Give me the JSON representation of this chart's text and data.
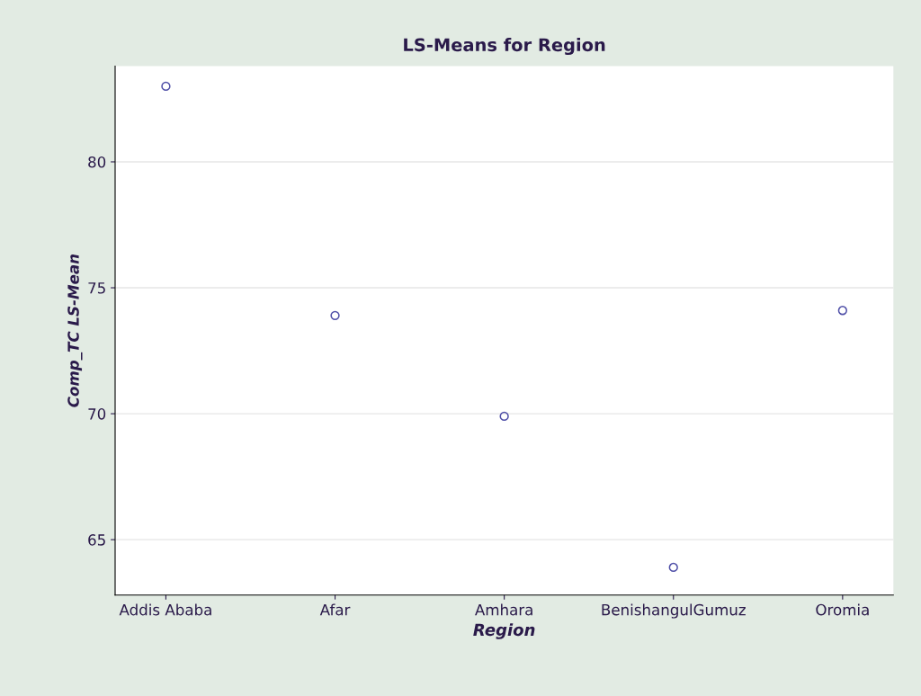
{
  "chart_data": {
    "type": "scatter",
    "title": "LS-Means for Region",
    "xlabel": "Region",
    "ylabel": "Comp_TC LS-Mean",
    "categories": [
      "Addis Ababa",
      "Afar",
      "Amhara",
      "BenishangulGumuz",
      "Oromia"
    ],
    "series": [
      {
        "color": "#5050a8",
        "values": [
          83.0,
          73.9,
          69.9,
          63.9,
          74.1
        ]
      }
    ],
    "ylim": [
      62.8,
      83.8
    ],
    "yticks": [
      65,
      70,
      75,
      80
    ],
    "grid": "y",
    "marker": "circle"
  }
}
